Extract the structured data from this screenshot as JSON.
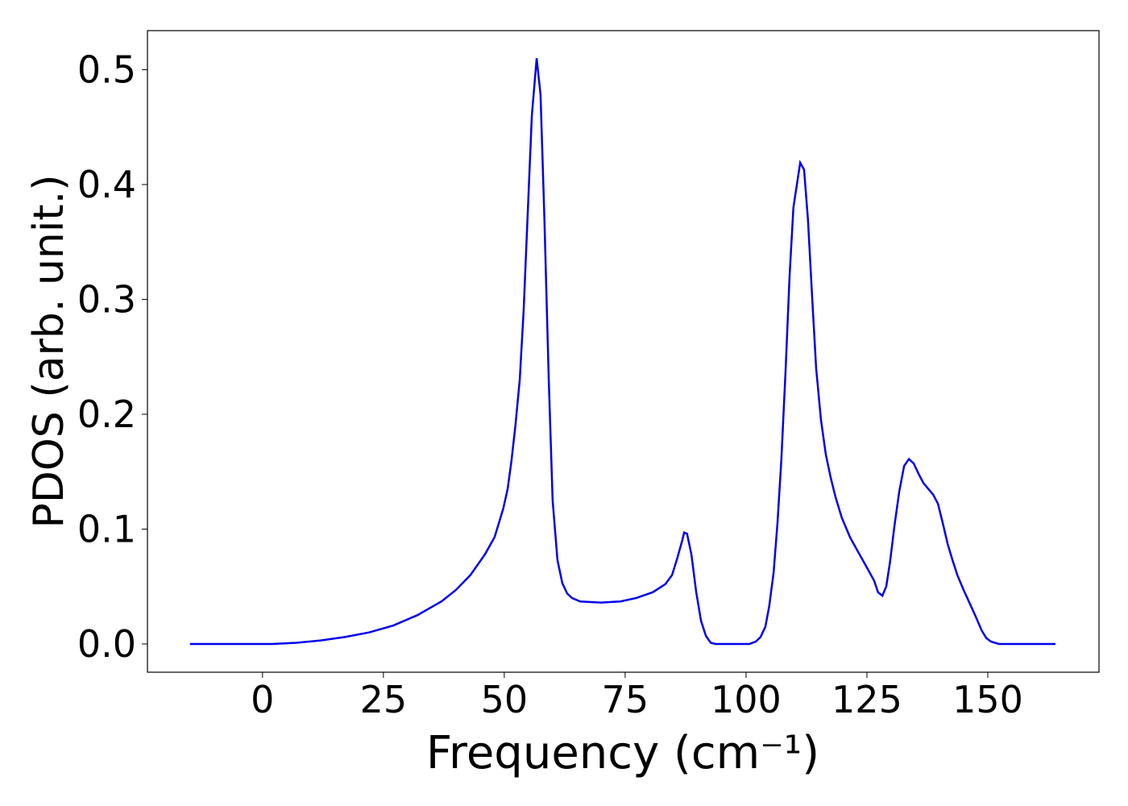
{
  "chart_data": {
    "type": "line",
    "xlabel": "Frequency (cm⁻¹)",
    "ylabel": "PDOS (arb. unit.)",
    "x": [
      -15,
      0,
      2,
      7,
      12,
      17,
      22,
      27,
      32,
      37,
      40,
      43,
      46,
      48,
      49.8,
      50.7,
      51.5,
      52.3,
      53.2,
      54,
      54.8,
      55.7,
      56.7,
      57.5,
      58.3,
      59.2,
      60,
      61,
      62,
      63,
      64,
      65.7,
      70,
      74,
      77.3,
      80.7,
      83.3,
      84.7,
      85.8,
      86.8,
      87.2,
      87.8,
      88.7,
      89.7,
      90.7,
      91.7,
      92.7,
      93.7,
      100.7,
      102,
      103,
      104,
      104.8,
      105.7,
      106.5,
      107.3,
      108.2,
      109,
      109.8,
      111.2,
      112,
      112.8,
      113.7,
      114.5,
      115.5,
      116.5,
      117.5,
      118.5,
      119.8,
      121.5,
      123.2,
      124.8,
      126.5,
      127.3,
      128.2,
      129,
      129.8,
      130.7,
      131.7,
      132.7,
      133.7,
      134.7,
      135.7,
      136.7,
      137.7,
      138.7,
      139.7,
      140.7,
      141.7,
      142.7,
      143.7,
      145,
      146.3,
      147.7,
      148.7,
      149.7,
      150.7,
      152.3,
      164
    ],
    "series": [
      {
        "color": "#0000ee",
        "values": [
          0,
          0,
          0,
          0.001,
          0.003,
          0.006,
          0.01,
          0.016,
          0.025,
          0.037,
          0.047,
          0.06,
          0.078,
          0.093,
          0.118,
          0.135,
          0.16,
          0.19,
          0.23,
          0.29,
          0.37,
          0.46,
          0.51,
          0.478,
          0.37,
          0.23,
          0.125,
          0.073,
          0.053,
          0.044,
          0.04,
          0.037,
          0.036,
          0.037,
          0.04,
          0.045,
          0.052,
          0.06,
          0.075,
          0.09,
          0.097,
          0.096,
          0.078,
          0.045,
          0.02,
          0.007,
          0.001,
          0,
          0,
          0.002,
          0.006,
          0.015,
          0.033,
          0.062,
          0.105,
          0.16,
          0.24,
          0.32,
          0.38,
          0.419,
          0.413,
          0.37,
          0.3,
          0.24,
          0.195,
          0.165,
          0.145,
          0.128,
          0.11,
          0.093,
          0.08,
          0.068,
          0.055,
          0.045,
          0.042,
          0.05,
          0.072,
          0.103,
          0.133,
          0.155,
          0.161,
          0.157,
          0.148,
          0.14,
          0.135,
          0.13,
          0.122,
          0.105,
          0.087,
          0.073,
          0.06,
          0.047,
          0.035,
          0.022,
          0.012,
          0.005,
          0.002,
          0,
          0
        ]
      }
    ],
    "xlim": [
      -23.8,
      173
    ],
    "ylim": [
      -0.0246,
      0.534
    ],
    "xticks": [
      0,
      25,
      50,
      75,
      100,
      125,
      150
    ],
    "yticks": [
      {
        "value": 0,
        "label": "0.0"
      },
      0.1,
      0.2,
      0.3,
      0.4,
      0.5
    ]
  }
}
